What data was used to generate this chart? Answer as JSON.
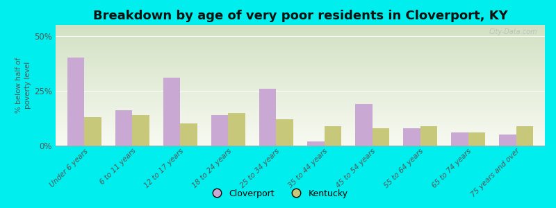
{
  "title": "Breakdown by age of very poor residents in Cloverport, KY",
  "ylabel": "% below half of\npoverty level",
  "categories": [
    "Under 6 years",
    "6 to 11 years",
    "12 to 17 years",
    "18 to 24 years",
    "25 to 34 years",
    "35 to 44 years",
    "45 to 54 years",
    "55 to 64 years",
    "65 to 74 years",
    "75 years and over"
  ],
  "cloverport": [
    40,
    16,
    31,
    14,
    26,
    2,
    19,
    8,
    6,
    5
  ],
  "kentucky": [
    13,
    14,
    10,
    15,
    12,
    9,
    8,
    9,
    6,
    9
  ],
  "cloverport_color": "#c9a8d4",
  "kentucky_color": "#c8c87a",
  "background_outer": "#00eeee",
  "bar_width": 0.35,
  "ylim": [
    0,
    55
  ],
  "yticks": [
    0,
    25,
    50
  ],
  "ytick_labels": [
    "0%",
    "25%",
    "50%"
  ],
  "title_fontsize": 13,
  "legend_labels": [
    "Cloverport",
    "Kentucky"
  ],
  "watermark": "City-Data.com"
}
